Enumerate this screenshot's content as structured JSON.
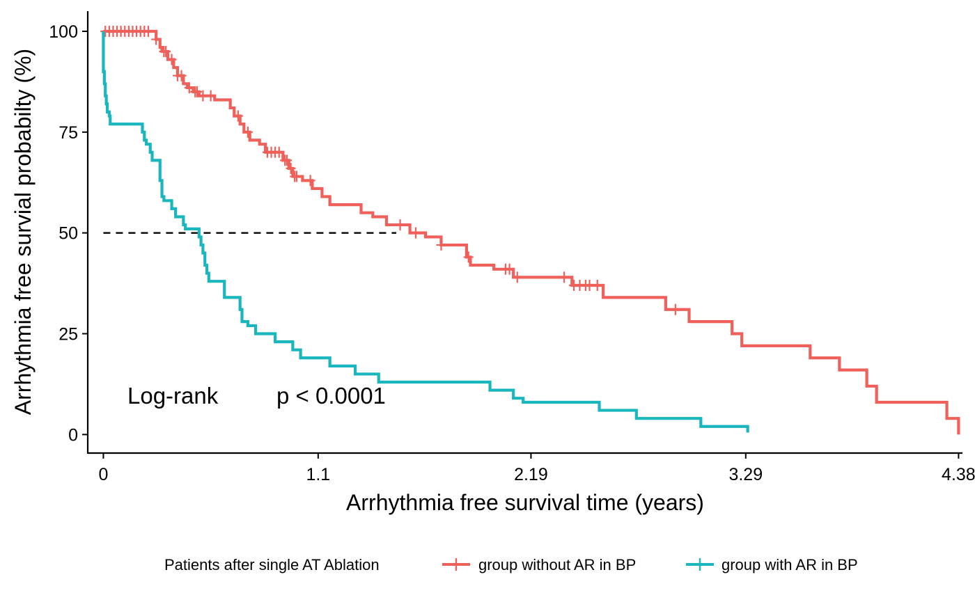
{
  "chart_data": {
    "type": "line",
    "subtype": "kaplan-meier",
    "xlabel": "Arrhythmia free survival time (years)",
    "ylabel": "Arrhythmia free survial probabilty (%)",
    "xlim": [
      -0.08,
      4.4
    ],
    "ylim": [
      -4.6,
      105
    ],
    "x_ticks": [
      0,
      1.1,
      2.19,
      3.29,
      4.38
    ],
    "x_tick_labels": [
      "0",
      "1.1",
      "2.19",
      "3.29",
      "4.38"
    ],
    "y_ticks": [
      0,
      25,
      50,
      75,
      100
    ],
    "y_tick_labels": [
      "0",
      "25",
      "50",
      "75",
      "100"
    ],
    "grid": false,
    "legend_position": "bottom",
    "legend_title": "Patients after single AT Ablation",
    "annotations": {
      "test_label": "Log-rank",
      "p_value": "p < 0.0001"
    },
    "median_line": {
      "y": 50,
      "x_from": 0,
      "x_to": 1.5,
      "style": "dashed",
      "color": "#000000"
    },
    "series": [
      {
        "name": "group without AR in BP",
        "color": "#F0605A",
        "steps": [
          [
            0,
            100
          ],
          [
            0.25,
            100
          ],
          [
            0.27,
            98
          ],
          [
            0.29,
            96
          ],
          [
            0.3,
            95
          ],
          [
            0.33,
            93
          ],
          [
            0.36,
            91
          ],
          [
            0.38,
            89
          ],
          [
            0.41,
            87
          ],
          [
            0.43,
            86
          ],
          [
            0.46,
            85
          ],
          [
            0.49,
            84
          ],
          [
            0.53,
            84
          ],
          [
            0.57,
            83
          ],
          [
            0.62,
            83
          ],
          [
            0.65,
            81
          ],
          [
            0.67,
            79
          ],
          [
            0.7,
            77
          ],
          [
            0.72,
            75
          ],
          [
            0.75,
            73
          ],
          [
            0.8,
            72
          ],
          [
            0.83,
            70
          ],
          [
            0.91,
            70
          ],
          [
            0.92,
            68
          ],
          [
            0.95,
            66
          ],
          [
            0.97,
            64
          ],
          [
            1.02,
            63
          ],
          [
            1.07,
            61
          ],
          [
            1.12,
            59
          ],
          [
            1.16,
            57
          ],
          [
            1.24,
            57
          ],
          [
            1.32,
            55
          ],
          [
            1.38,
            54
          ],
          [
            1.45,
            52
          ],
          [
            1.55,
            52
          ],
          [
            1.57,
            50
          ],
          [
            1.62,
            50
          ],
          [
            1.65,
            49
          ],
          [
            1.73,
            47
          ],
          [
            1.84,
            47
          ],
          [
            1.86,
            44
          ],
          [
            1.88,
            42
          ],
          [
            1.97,
            42
          ],
          [
            2,
            41
          ],
          [
            2.07,
            41
          ],
          [
            2.1,
            39
          ],
          [
            2.37,
            39
          ],
          [
            2.4,
            37
          ],
          [
            2.54,
            37
          ],
          [
            2.56,
            34
          ],
          [
            2.85,
            34
          ],
          [
            2.88,
            31
          ],
          [
            2.98,
            31
          ],
          [
            3,
            28
          ],
          [
            3.2,
            28
          ],
          [
            3.22,
            25
          ],
          [
            3.25,
            25
          ],
          [
            3.27,
            22
          ],
          [
            3.6,
            22
          ],
          [
            3.62,
            19
          ],
          [
            3.75,
            19
          ],
          [
            3.77,
            16
          ],
          [
            3.89,
            16
          ],
          [
            3.91,
            12
          ],
          [
            3.94,
            12
          ],
          [
            3.96,
            8
          ],
          [
            4.3,
            8
          ],
          [
            4.32,
            4
          ],
          [
            4.37,
            4
          ],
          [
            4.38,
            0
          ]
        ],
        "censor_times": [
          0.01,
          0.03,
          0.05,
          0.07,
          0.09,
          0.11,
          0.13,
          0.15,
          0.17,
          0.19,
          0.21,
          0.23,
          0.27,
          0.31,
          0.32,
          0.35,
          0.38,
          0.4,
          0.44,
          0.47,
          0.48,
          0.51,
          0.55,
          0.69,
          0.74,
          0.84,
          0.86,
          0.88,
          0.9,
          0.93,
          0.94,
          0.96,
          0.98,
          0.99,
          1.06,
          1.52,
          1.6,
          1.73,
          1.87,
          2.06,
          2.08,
          2.12,
          2.36,
          2.41,
          2.44,
          2.47,
          2.49,
          2.53,
          2.93
        ]
      },
      {
        "name": "group with AR in BP",
        "color": "#1AB6BE",
        "steps": [
          [
            0,
            100
          ],
          [
            0,
            90
          ],
          [
            0.005,
            87
          ],
          [
            0.01,
            84
          ],
          [
            0.015,
            82
          ],
          [
            0.02,
            80
          ],
          [
            0.03,
            79
          ],
          [
            0.035,
            77
          ],
          [
            0.19,
            77
          ],
          [
            0.2,
            75
          ],
          [
            0.21,
            73
          ],
          [
            0.22,
            72
          ],
          [
            0.24,
            70
          ],
          [
            0.25,
            68
          ],
          [
            0.28,
            68
          ],
          [
            0.29,
            65
          ],
          [
            0.29,
            63
          ],
          [
            0.3,
            61
          ],
          [
            0.3,
            59
          ],
          [
            0.31,
            58
          ],
          [
            0.34,
            58
          ],
          [
            0.35,
            56
          ],
          [
            0.37,
            54
          ],
          [
            0.41,
            52
          ],
          [
            0.42,
            51
          ],
          [
            0.48,
            51
          ],
          [
            0.49,
            49
          ],
          [
            0.5,
            47
          ],
          [
            0.51,
            45
          ],
          [
            0.52,
            42
          ],
          [
            0.53,
            40
          ],
          [
            0.54,
            38
          ],
          [
            0.61,
            38
          ],
          [
            0.62,
            34
          ],
          [
            0.69,
            34
          ],
          [
            0.7,
            31
          ],
          [
            0.71,
            28
          ],
          [
            0.74,
            27
          ],
          [
            0.78,
            25
          ],
          [
            0.87,
            25
          ],
          [
            0.88,
            23
          ],
          [
            0.96,
            23
          ],
          [
            0.97,
            21
          ],
          [
            1,
            21
          ],
          [
            1.01,
            19
          ],
          [
            1.15,
            19
          ],
          [
            1.16,
            17
          ],
          [
            1.28,
            17
          ],
          [
            1.29,
            15
          ],
          [
            1.4,
            15
          ],
          [
            1.41,
            13
          ],
          [
            1.97,
            13
          ],
          [
            1.98,
            11
          ],
          [
            2.08,
            11
          ],
          [
            2.1,
            9
          ],
          [
            2.13,
            9
          ],
          [
            2.15,
            8
          ],
          [
            2.53,
            8
          ],
          [
            2.54,
            6
          ],
          [
            2.71,
            6
          ],
          [
            2.73,
            4
          ],
          [
            3.04,
            4
          ],
          [
            3.06,
            2
          ],
          [
            3.3,
            2
          ],
          [
            3.3,
            0.5
          ]
        ],
        "censor_times": []
      }
    ]
  }
}
